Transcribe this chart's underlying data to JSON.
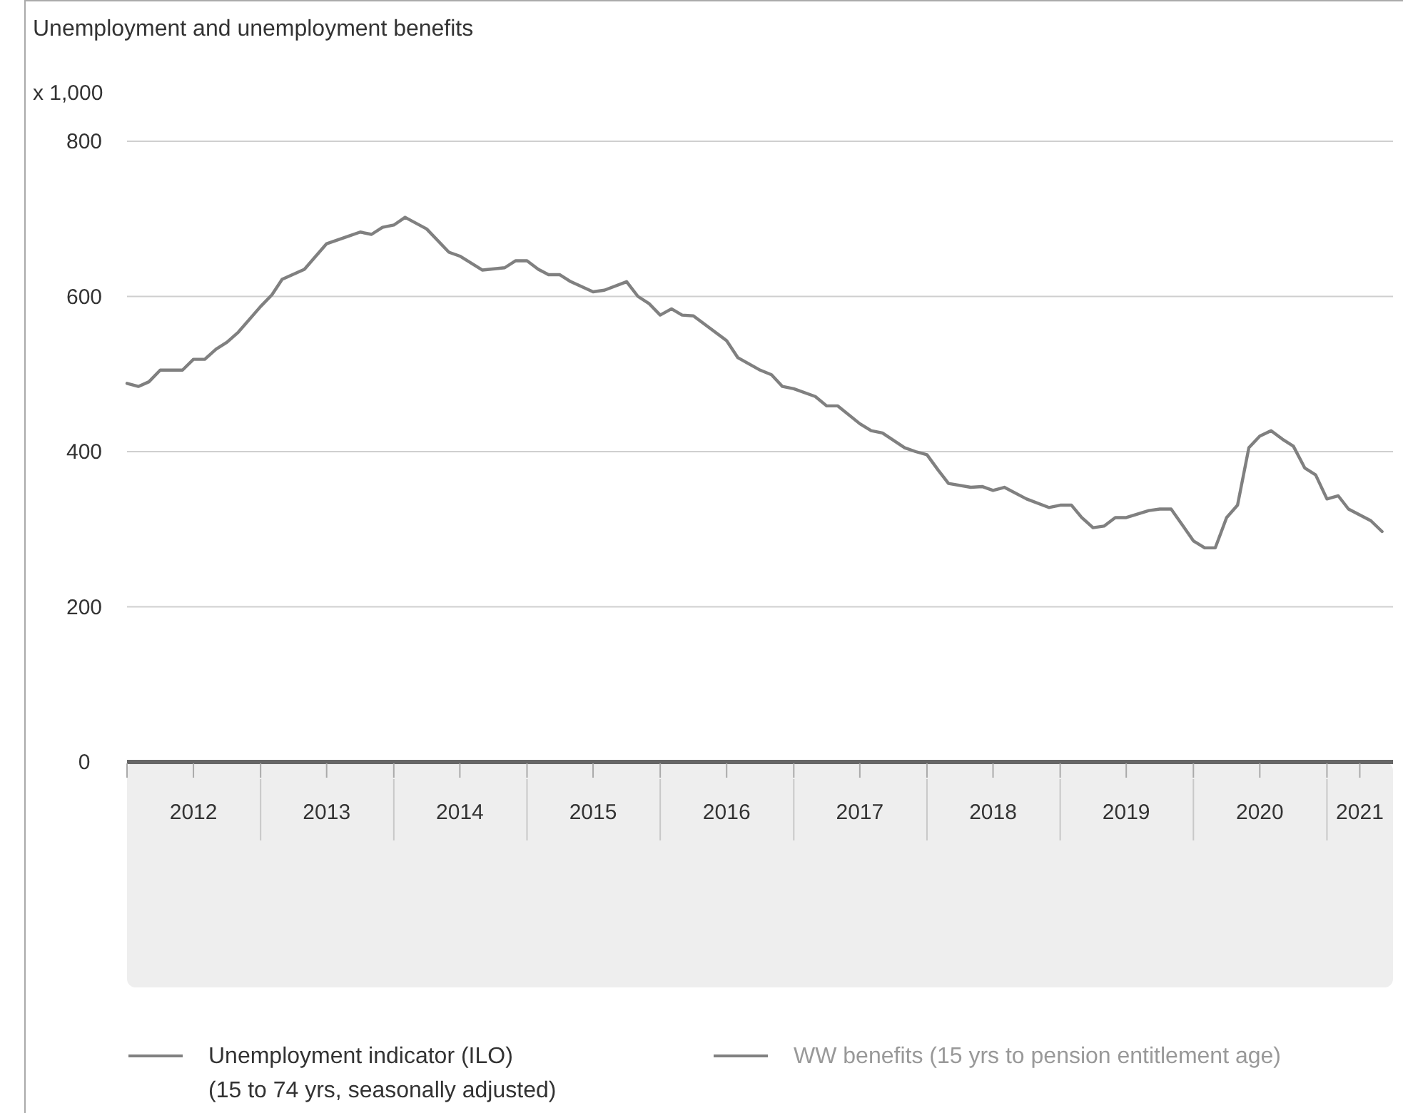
{
  "chart_data": {
    "type": "line",
    "title": "Unemployment and unemployment benefits",
    "ylabel": "x 1,000",
    "x": [
      "2012-01",
      "2012-02",
      "2012-03",
      "2012-04",
      "2012-06",
      "2012-07",
      "2012-08",
      "2012-09",
      "2012-10",
      "2012-11",
      "2013-01",
      "2013-02",
      "2013-03",
      "2013-05",
      "2013-07",
      "2013-09",
      "2013-10",
      "2013-11",
      "2013-12",
      "2014-01",
      "2014-02",
      "2014-04",
      "2014-06",
      "2014-07",
      "2014-09",
      "2014-11",
      "2014-12",
      "2015-01",
      "2015-02",
      "2015-03",
      "2015-04",
      "2015-05",
      "2015-07",
      "2015-08",
      "2015-10",
      "2015-11",
      "2015-12",
      "2016-01",
      "2016-02",
      "2016-03",
      "2016-04",
      "2016-07",
      "2016-08",
      "2016-10",
      "2016-11",
      "2016-12",
      "2017-01",
      "2017-03",
      "2017-04",
      "2017-05",
      "2017-07",
      "2017-08",
      "2017-09",
      "2017-11",
      "2017-12",
      "2018-01",
      "2018-02",
      "2018-03",
      "2018-05",
      "2018-06",
      "2018-07",
      "2018-08",
      "2018-10",
      "2018-12",
      "2019-01",
      "2019-02",
      "2019-03",
      "2019-04",
      "2019-05",
      "2019-06",
      "2019-07",
      "2019-09",
      "2019-10",
      "2019-11",
      "2019-12",
      "2020-01",
      "2020-02",
      "2020-03",
      "2020-04",
      "2020-05",
      "2020-06",
      "2020-07",
      "2020-08",
      "2020-09",
      "2020-10",
      "2020-11",
      "2020-12",
      "2021-01",
      "2021-02",
      "2021-03",
      "2021-05",
      "2021-06"
    ],
    "series": [
      {
        "name": "Unemployment indicator (ILO)\n(15 to 74 yrs, seasonally adjusted)",
        "color": "#808080",
        "values": [
          488,
          484,
          490,
          505,
          505,
          519,
          519,
          532,
          541,
          554,
          587,
          602,
          622,
          635,
          668,
          678,
          683,
          680,
          689,
          692,
          702,
          687,
          657,
          652,
          634,
          637,
          646,
          646,
          635,
          628,
          628,
          619,
          606,
          608,
          619,
          600,
          591,
          576,
          584,
          576,
          575,
          543,
          521,
          505,
          499,
          484,
          481,
          471,
          459,
          459,
          436,
          427,
          424,
          405,
          400,
          396,
          376,
          359,
          354,
          355,
          350,
          354,
          339,
          328,
          331,
          331,
          315,
          302,
          304,
          315,
          315,
          324,
          326,
          326,
          306,
          285,
          276,
          276,
          315,
          331,
          405,
          420,
          427,
          416,
          407,
          379,
          370,
          339,
          343,
          326,
          311,
          297
        ]
      },
      {
        "name": "WW benefits (15 yrs to pension entitlement age)",
        "color": "#808080",
        "values": [
          null,
          null,
          null,
          null,
          null,
          null,
          null,
          null,
          null,
          null,
          null,
          null,
          null,
          null,
          null,
          null,
          null,
          null,
          null,
          null,
          null,
          null,
          null,
          null,
          null,
          null,
          null,
          null,
          null,
          null,
          null,
          null,
          null,
          null,
          null,
          null,
          null,
          null,
          null,
          null,
          null,
          null,
          null,
          null,
          null,
          null,
          null,
          null,
          null,
          null,
          null,
          null,
          null,
          null,
          null,
          null,
          null,
          null,
          null,
          null,
          null,
          null,
          null,
          null,
          null,
          null,
          null,
          null,
          null,
          null,
          null,
          null,
          null,
          null,
          null,
          null,
          null,
          null,
          null,
          null,
          null,
          null,
          null,
          null,
          null,
          null,
          null,
          null,
          null,
          null,
          null,
          null
        ]
      }
    ],
    "xlim": [
      "2012-01",
      "2021-07"
    ],
    "xticks": [
      {
        "value": "2012-01",
        "label": null
      },
      {
        "value": "2012-07",
        "label": "2012"
      },
      {
        "value": "2013-01",
        "label": null
      },
      {
        "value": "2013-07",
        "label": "2013"
      },
      {
        "value": "2014-01",
        "label": null
      },
      {
        "value": "2014-07",
        "label": "2014"
      },
      {
        "value": "2015-01",
        "label": null
      },
      {
        "value": "2015-07",
        "label": "2015"
      },
      {
        "value": "2016-01",
        "label": null
      },
      {
        "value": "2016-07",
        "label": "2016"
      },
      {
        "value": "2017-01",
        "label": null
      },
      {
        "value": "2017-07",
        "label": "2017"
      },
      {
        "value": "2018-01",
        "label": null
      },
      {
        "value": "2018-07",
        "label": "2018"
      },
      {
        "value": "2019-01",
        "label": null
      },
      {
        "value": "2019-07",
        "label": "2019"
      },
      {
        "value": "2020-01",
        "label": null
      },
      {
        "value": "2020-07",
        "label": "2020"
      },
      {
        "value": "2021-01",
        "label": null
      },
      {
        "value": "2021-04",
        "label": "2021"
      }
    ],
    "ylim": [
      0,
      800
    ],
    "yticks": [
      0,
      200,
      400,
      600,
      800
    ],
    "grid": "y",
    "legend": "bottom",
    "line_style": "solid",
    "marker": "none"
  }
}
